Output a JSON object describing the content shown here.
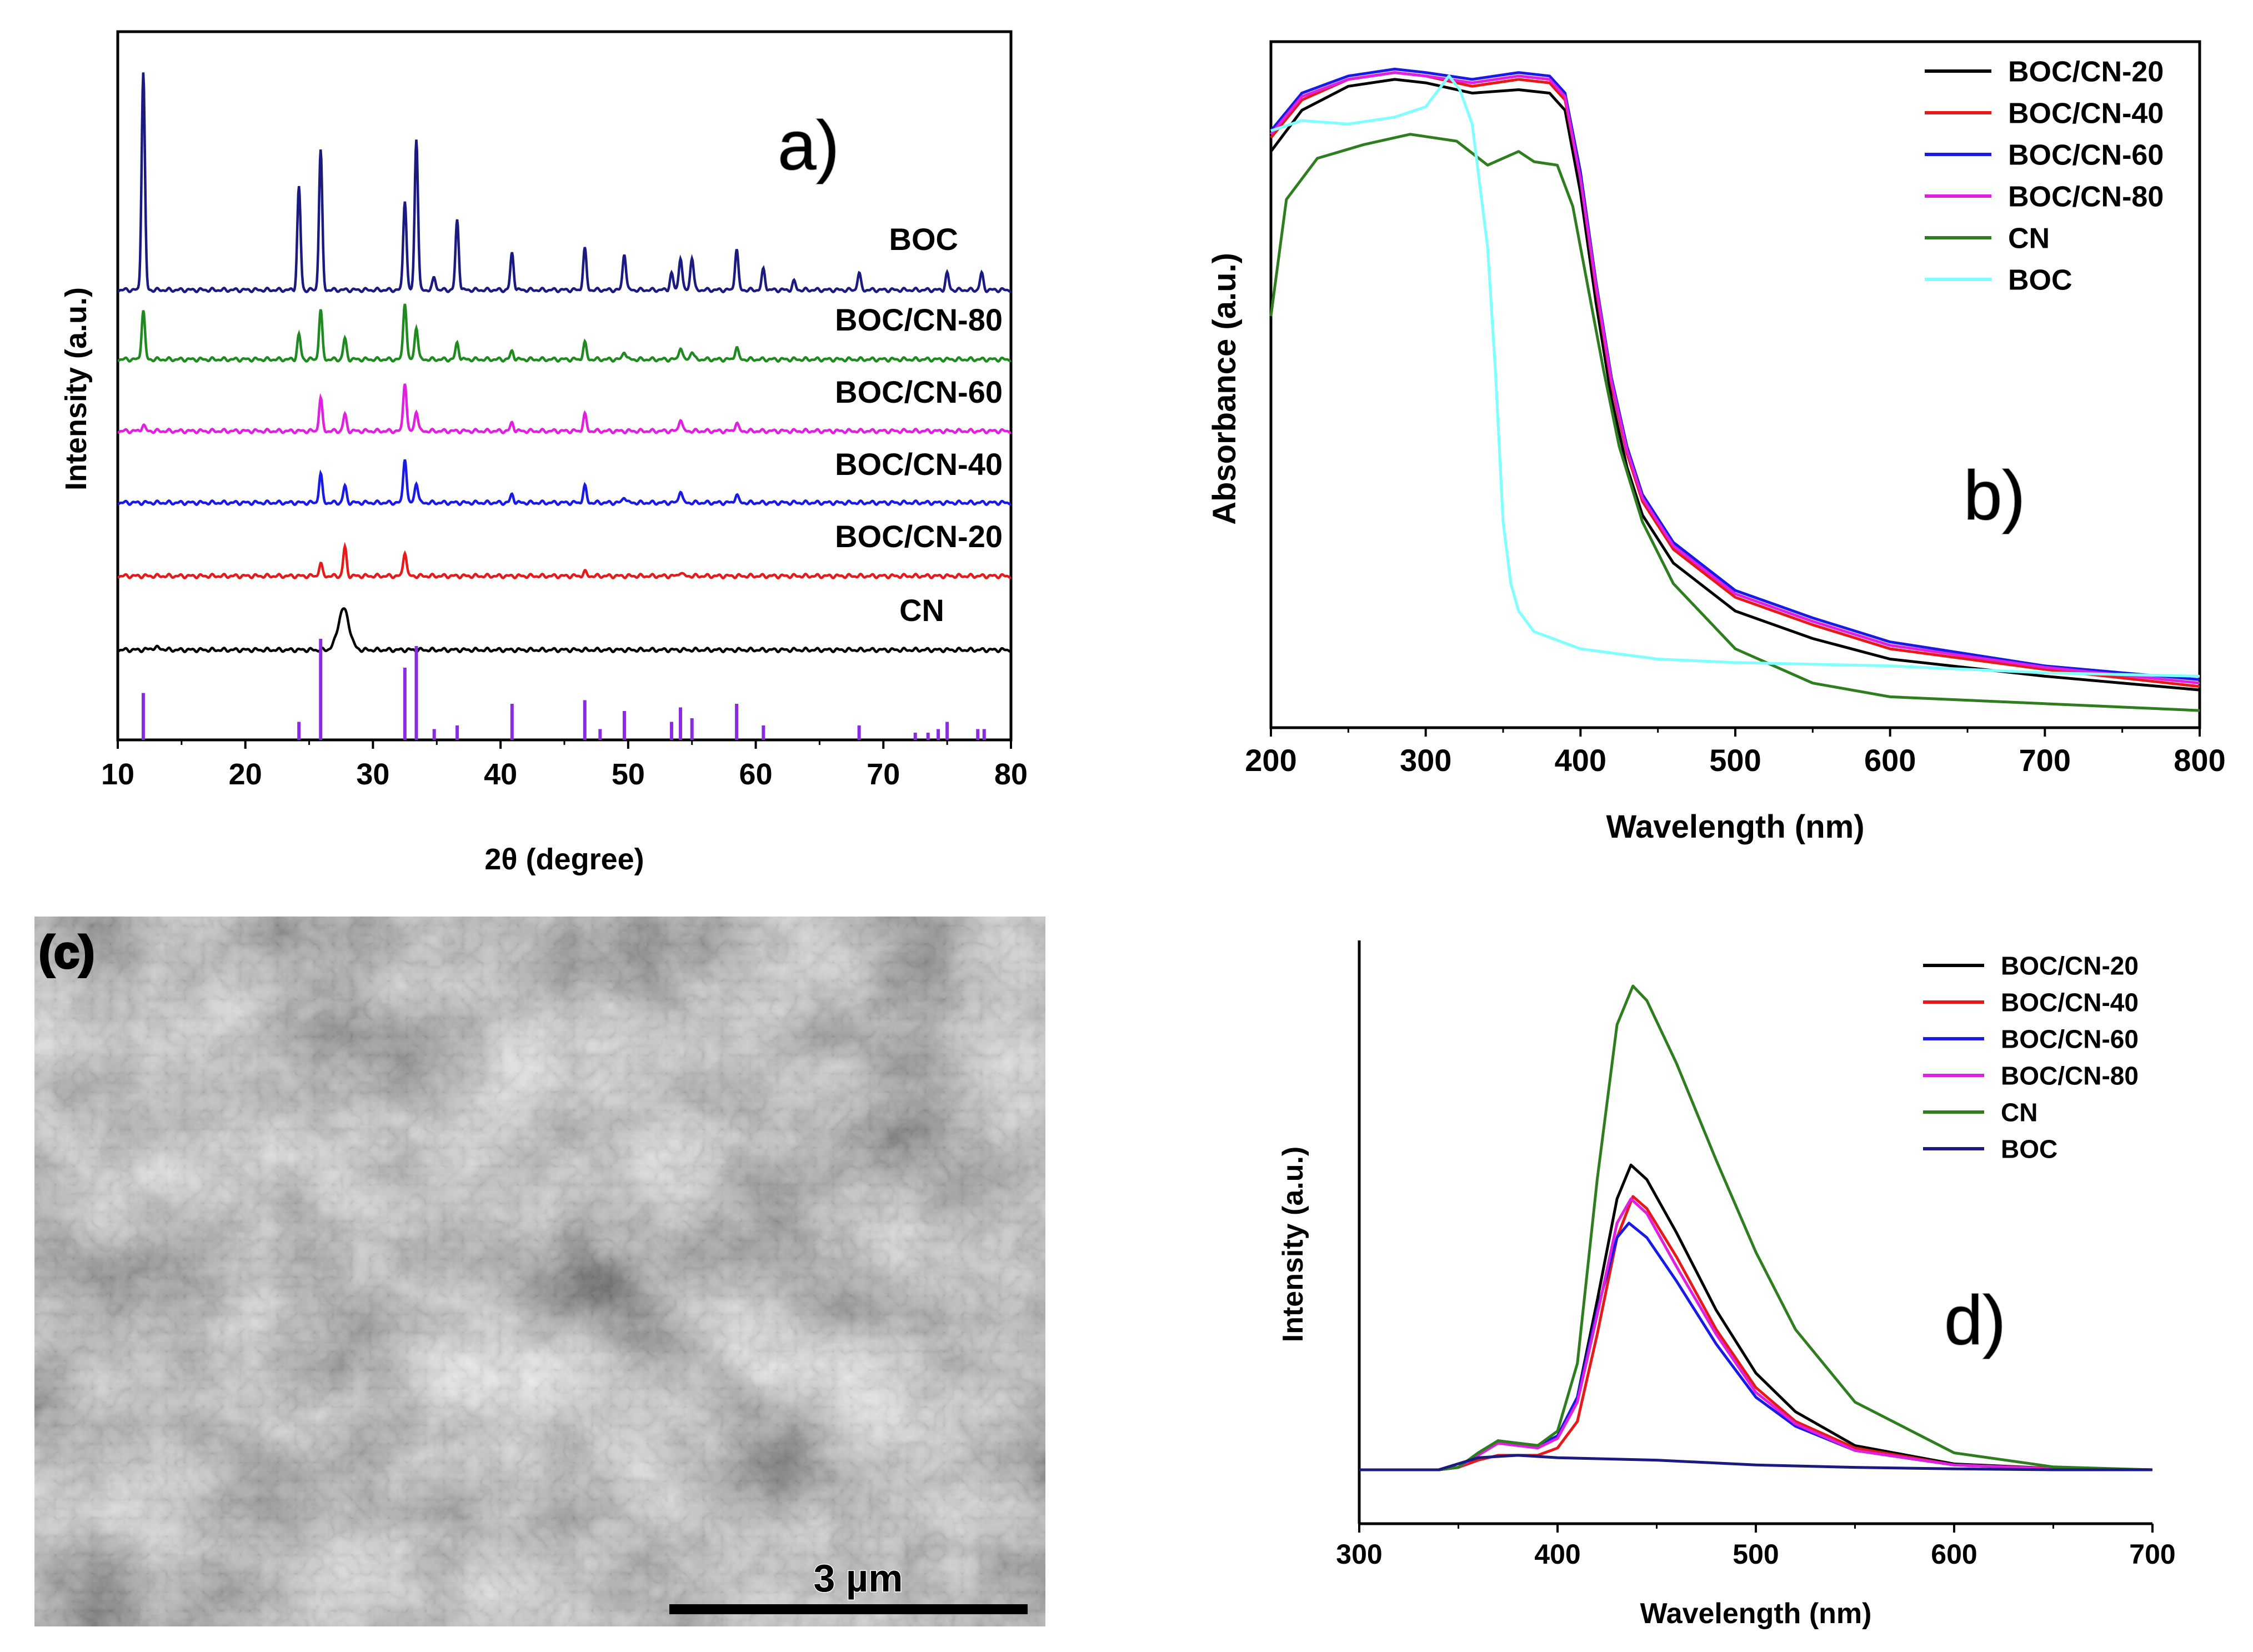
{
  "figure": {
    "panels": [
      "a)",
      "b)",
      "(c)",
      "d)"
    ]
  },
  "chart_data": [
    {
      "id": "a",
      "type": "line",
      "panel_label": "a)",
      "title": "",
      "xlabel": "2θ (degree)",
      "ylabel": "Intensity (a.u.)",
      "xlim": [
        10,
        80
      ],
      "xticks": [
        10,
        20,
        30,
        40,
        50,
        60,
        70,
        80
      ],
      "grid": false,
      "series": [
        {
          "name": "BOC",
          "color": "#1a1a80",
          "offset": 5.0,
          "peaks": [
            [
              12.0,
              5.3
            ],
            [
              24.2,
              2.5
            ],
            [
              25.9,
              3.4
            ],
            [
              32.5,
              2.2
            ],
            [
              33.4,
              3.7
            ],
            [
              34.8,
              0.3
            ],
            [
              36.6,
              1.7
            ],
            [
              40.9,
              0.9
            ],
            [
              46.6,
              1.0
            ],
            [
              49.7,
              0.9
            ],
            [
              53.4,
              0.4
            ],
            [
              54.1,
              0.8
            ],
            [
              55.0,
              0.8
            ],
            [
              58.5,
              1.0
            ],
            [
              60.6,
              0.5
            ],
            [
              63.0,
              0.2
            ],
            [
              68.1,
              0.4
            ],
            [
              75.0,
              0.4
            ],
            [
              77.7,
              0.4
            ]
          ]
        },
        {
          "name": "BOC/CN-80",
          "color": "#1f8a1f",
          "offset": 4.0,
          "peaks": [
            [
              12.0,
              1.2
            ],
            [
              24.2,
              0.6
            ],
            [
              25.9,
              1.2
            ],
            [
              27.8,
              0.5
            ],
            [
              32.5,
              1.4
            ],
            [
              33.4,
              0.8
            ],
            [
              36.6,
              0.4
            ],
            [
              40.9,
              0.2
            ],
            [
              46.6,
              0.4
            ],
            [
              49.7,
              0.2
            ],
            [
              54.1,
              0.3
            ],
            [
              55.0,
              0.2
            ],
            [
              58.5,
              0.3
            ]
          ]
        },
        {
          "name": "BOC/CN-60",
          "color": "#e020e0",
          "offset": 3.0,
          "peaks": [
            [
              12.0,
              0.15
            ],
            [
              25.9,
              0.8
            ],
            [
              27.8,
              0.4
            ],
            [
              32.5,
              1.2
            ],
            [
              33.4,
              0.5
            ],
            [
              40.9,
              0.2
            ],
            [
              46.6,
              0.4
            ],
            [
              54.1,
              0.3
            ],
            [
              58.5,
              0.2
            ]
          ]
        },
        {
          "name": "BOC/CN-40",
          "color": "#1a1ae6",
          "offset": 2.0,
          "peaks": [
            [
              25.9,
              0.7
            ],
            [
              27.8,
              0.4
            ],
            [
              32.5,
              1.1
            ],
            [
              33.4,
              0.5
            ],
            [
              40.9,
              0.2
            ],
            [
              46.6,
              0.4
            ],
            [
              49.7,
              0.15
            ],
            [
              54.1,
              0.3
            ],
            [
              58.5,
              0.2
            ]
          ]
        },
        {
          "name": "BOC/CN-20",
          "color": "#e61a1a",
          "offset": 1.0,
          "peaks": [
            [
              25.9,
              0.3
            ],
            [
              27.8,
              0.7
            ],
            [
              32.5,
              0.6
            ],
            [
              46.6,
              0.1
            ],
            [
              54.1,
              0.1
            ]
          ]
        },
        {
          "name": "CN",
          "color": "#000000",
          "offset": 0.0,
          "peaks": [
            [
              13.0,
              0.05
            ],
            [
              27.7,
              1.0
            ]
          ]
        }
      ],
      "reference": {
        "name": "reference pattern",
        "color": "#8a2be2",
        "lines": [
          [
            12.0,
            1.3
          ],
          [
            24.2,
            0.5
          ],
          [
            25.9,
            2.8
          ],
          [
            32.5,
            2.0
          ],
          [
            33.4,
            2.6
          ],
          [
            34.8,
            0.3
          ],
          [
            36.6,
            0.4
          ],
          [
            40.9,
            1.0
          ],
          [
            46.6,
            1.1
          ],
          [
            47.8,
            0.3
          ],
          [
            49.7,
            0.8
          ],
          [
            53.4,
            0.5
          ],
          [
            54.1,
            0.9
          ],
          [
            55.0,
            0.6
          ],
          [
            58.5,
            1.0
          ],
          [
            60.6,
            0.4
          ],
          [
            68.1,
            0.4
          ],
          [
            72.5,
            0.2
          ],
          [
            73.5,
            0.2
          ],
          [
            74.3,
            0.3
          ],
          [
            75.0,
            0.5
          ],
          [
            77.4,
            0.3
          ],
          [
            77.9,
            0.3
          ]
        ]
      }
    },
    {
      "id": "b",
      "type": "line",
      "panel_label": "b)",
      "title": "",
      "xlabel": "Wavelength (nm)",
      "ylabel": "Absorbance (a.u.)",
      "xlim": [
        200,
        800
      ],
      "ylim": [
        0,
        1.0
      ],
      "xticks": [
        200,
        300,
        400,
        500,
        600,
        700,
        800
      ],
      "legend": "top-right",
      "series": [
        {
          "name": "BOC/CN-20",
          "color": "#000000",
          "x": [
            200,
            220,
            250,
            280,
            300,
            330,
            360,
            380,
            390,
            400,
            410,
            420,
            430,
            440,
            460,
            500,
            550,
            600,
            700,
            800
          ],
          "y": [
            0.84,
            0.9,
            0.935,
            0.945,
            0.94,
            0.925,
            0.93,
            0.925,
            0.9,
            0.78,
            0.62,
            0.48,
            0.38,
            0.31,
            0.24,
            0.17,
            0.13,
            0.1,
            0.075,
            0.055
          ]
        },
        {
          "name": "BOC/CN-40",
          "color": "#e61a1a",
          "x": [
            200,
            220,
            250,
            280,
            300,
            330,
            360,
            380,
            390,
            400,
            410,
            420,
            430,
            440,
            460,
            500,
            550,
            600,
            700,
            800
          ],
          "y": [
            0.86,
            0.915,
            0.945,
            0.955,
            0.95,
            0.935,
            0.945,
            0.94,
            0.915,
            0.8,
            0.64,
            0.5,
            0.4,
            0.33,
            0.26,
            0.19,
            0.15,
            0.115,
            0.085,
            0.06
          ]
        },
        {
          "name": "BOC/CN-60",
          "color": "#1a1ae6",
          "x": [
            200,
            220,
            250,
            280,
            300,
            330,
            360,
            380,
            390,
            400,
            410,
            420,
            430,
            440,
            460,
            500,
            550,
            600,
            700,
            800
          ],
          "y": [
            0.87,
            0.925,
            0.95,
            0.96,
            0.955,
            0.945,
            0.955,
            0.95,
            0.925,
            0.81,
            0.65,
            0.51,
            0.41,
            0.34,
            0.27,
            0.2,
            0.16,
            0.125,
            0.09,
            0.07
          ]
        },
        {
          "name": "BOC/CN-80",
          "color": "#e020e0",
          "x": [
            200,
            220,
            250,
            280,
            300,
            330,
            360,
            380,
            390,
            400,
            410,
            420,
            430,
            440,
            460,
            500,
            550,
            600,
            700,
            800
          ],
          "y": [
            0.865,
            0.92,
            0.945,
            0.955,
            0.95,
            0.94,
            0.95,
            0.945,
            0.92,
            0.8,
            0.645,
            0.505,
            0.405,
            0.335,
            0.265,
            0.195,
            0.155,
            0.12,
            0.088,
            0.065
          ]
        },
        {
          "name": "CN",
          "color": "#2e7d1e",
          "x": [
            200,
            210,
            230,
            260,
            290,
            320,
            340,
            360,
            370,
            385,
            395,
            405,
            415,
            425,
            440,
            460,
            500,
            550,
            600,
            700,
            800
          ],
          "y": [
            0.6,
            0.77,
            0.83,
            0.85,
            0.865,
            0.855,
            0.82,
            0.84,
            0.825,
            0.82,
            0.76,
            0.64,
            0.52,
            0.41,
            0.3,
            0.21,
            0.115,
            0.065,
            0.045,
            0.035,
            0.025
          ]
        },
        {
          "name": "BOC",
          "color": "#7fffff",
          "x": [
            200,
            220,
            250,
            280,
            300,
            315,
            322,
            330,
            340,
            345,
            350,
            355,
            360,
            370,
            400,
            450,
            500,
            600,
            700,
            800
          ],
          "y": [
            0.87,
            0.885,
            0.88,
            0.89,
            0.905,
            0.95,
            0.93,
            0.88,
            0.7,
            0.52,
            0.3,
            0.21,
            0.17,
            0.14,
            0.115,
            0.1,
            0.095,
            0.09,
            0.08,
            0.075
          ]
        }
      ]
    },
    {
      "id": "c",
      "type": "image",
      "panel_label": "(c)",
      "scale_bar": "3 µm"
    },
    {
      "id": "d",
      "type": "line",
      "panel_label": "d)",
      "title": "",
      "xlabel": "Wavelength (nm)",
      "ylabel": "Intensity (a.u.)",
      "xlim": [
        300,
        700
      ],
      "ylim": [
        0,
        1.0
      ],
      "xticks": [
        300,
        400,
        500,
        600,
        700
      ],
      "legend": "top-right",
      "series": [
        {
          "name": "BOC/CN-20",
          "color": "#000000",
          "x": [
            300,
            340,
            350,
            360,
            370,
            380,
            390,
            400,
            410,
            420,
            430,
            437,
            445,
            460,
            480,
            500,
            520,
            550,
            600,
            650,
            700
          ],
          "y": [
            0,
            0,
            0.005,
            0.03,
            0.06,
            0.055,
            0.05,
            0.07,
            0.15,
            0.35,
            0.56,
            0.63,
            0.6,
            0.49,
            0.33,
            0.2,
            0.12,
            0.05,
            0.012,
            0.003,
            0
          ]
        },
        {
          "name": "BOC/CN-40",
          "color": "#e61a1a",
          "x": [
            300,
            340,
            350,
            360,
            370,
            380,
            390,
            400,
            410,
            420,
            430,
            438,
            445,
            460,
            480,
            500,
            520,
            550,
            600,
            650,
            700
          ],
          "y": [
            0,
            0,
            0.005,
            0.02,
            0.03,
            0.03,
            0.03,
            0.045,
            0.1,
            0.28,
            0.48,
            0.565,
            0.54,
            0.44,
            0.29,
            0.17,
            0.1,
            0.045,
            0.01,
            0.003,
            0
          ]
        },
        {
          "name": "BOC/CN-60",
          "color": "#1a1ae6",
          "x": [
            300,
            340,
            350,
            360,
            370,
            380,
            390,
            400,
            410,
            420,
            430,
            436,
            445,
            460,
            480,
            500,
            520,
            550,
            600,
            650,
            700
          ],
          "y": [
            0,
            0,
            0.005,
            0.035,
            0.06,
            0.055,
            0.05,
            0.07,
            0.15,
            0.33,
            0.48,
            0.51,
            0.48,
            0.39,
            0.26,
            0.15,
            0.09,
            0.04,
            0.01,
            0.002,
            0
          ]
        },
        {
          "name": "BOC/CN-80",
          "color": "#e020e0",
          "x": [
            300,
            340,
            350,
            360,
            370,
            380,
            390,
            400,
            410,
            420,
            430,
            437,
            445,
            460,
            480,
            500,
            520,
            550,
            600,
            650,
            700
          ],
          "y": [
            0,
            0,
            0.005,
            0.03,
            0.055,
            0.05,
            0.045,
            0.065,
            0.14,
            0.32,
            0.51,
            0.56,
            0.53,
            0.42,
            0.28,
            0.16,
            0.095,
            0.04,
            0.01,
            0.002,
            0
          ]
        },
        {
          "name": "CN",
          "color": "#2e7d1e",
          "x": [
            300,
            340,
            350,
            360,
            370,
            380,
            390,
            400,
            410,
            420,
            430,
            438,
            445,
            460,
            480,
            500,
            520,
            550,
            600,
            650,
            700
          ],
          "y": [
            0,
            0,
            0.005,
            0.035,
            0.06,
            0.055,
            0.05,
            0.08,
            0.22,
            0.6,
            0.92,
            1.0,
            0.97,
            0.84,
            0.64,
            0.45,
            0.29,
            0.14,
            0.035,
            0.006,
            0
          ]
        },
        {
          "name": "BOC",
          "color": "#1a1a80",
          "x": [
            300,
            340,
            360,
            380,
            400,
            450,
            500,
            550,
            600,
            650,
            700
          ],
          "y": [
            0,
            0,
            0.025,
            0.03,
            0.025,
            0.02,
            0.01,
            0.005,
            0.002,
            0,
            0
          ]
        }
      ]
    }
  ]
}
